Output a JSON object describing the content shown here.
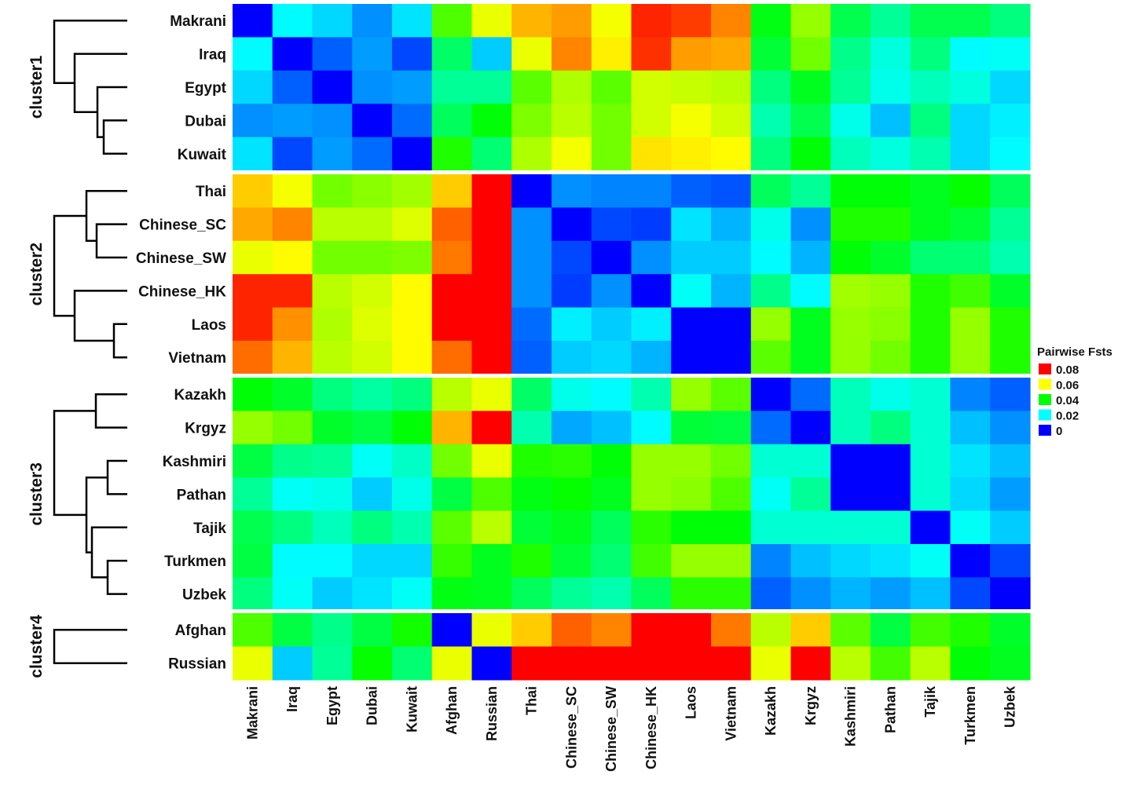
{
  "chart_data": {
    "type": "heatmap",
    "rows": [
      "Makrani",
      "Iraq",
      "Egypt",
      "Dubai",
      "Kuwait",
      "Thai",
      "Chinese_SC",
      "Chinese_SW",
      "Chinese_HK",
      "Laos",
      "Vietnam",
      "Kazakh",
      "Krgyz",
      "Kashmiri",
      "Pathan",
      "Tajik",
      "Turkmen",
      "Uzbek",
      "Afghan",
      "Russian"
    ],
    "columns": [
      "Makrani",
      "Iraq",
      "Egypt",
      "Dubai",
      "Kuwait",
      "Afghan",
      "Russian",
      "Thai",
      "Chinese_SC",
      "Chinese_SW",
      "Chinese_HK",
      "Laos",
      "Vietnam",
      "Kazakh",
      "Krgyz",
      "Kashmiri",
      "Pathan",
      "Tajik",
      "Turkmen",
      "Uzbek"
    ],
    "clusters": [
      {
        "label": "cluster1",
        "rows": [
          "Makrani",
          "Iraq",
          "Egypt",
          "Dubai",
          "Kuwait"
        ]
      },
      {
        "label": "cluster2",
        "rows": [
          "Thai",
          "Chinese_SC",
          "Chinese_SW",
          "Chinese_HK",
          "Laos",
          "Vietnam"
        ]
      },
      {
        "label": "cluster3",
        "rows": [
          "Kazakh",
          "Krgyz",
          "Kashmiri",
          "Pathan",
          "Tajik",
          "Turkmen",
          "Uzbek"
        ]
      },
      {
        "label": "cluster4",
        "rows": [
          "Afghan",
          "Russian"
        ]
      }
    ],
    "values": [
      [
        0,
        0.021,
        0.018,
        0.012,
        0.019,
        0.049,
        0.062,
        0.07,
        0.072,
        0.063,
        0.082,
        0.08,
        0.074,
        0.041,
        0.055,
        0.036,
        0.03,
        0.036,
        0.036,
        0.032
      ],
      [
        0.021,
        0,
        0.008,
        0.013,
        0.006,
        0.034,
        0.017,
        0.062,
        0.074,
        0.065,
        0.081,
        0.072,
        0.071,
        0.038,
        0.052,
        0.031,
        0.024,
        0.032,
        0.021,
        0.022
      ],
      [
        0.018,
        0.008,
        0,
        0.012,
        0.013,
        0.03,
        0.03,
        0.05,
        0.057,
        0.05,
        0.06,
        0.059,
        0.058,
        0.032,
        0.04,
        0.03,
        0.023,
        0.027,
        0.024,
        0.018
      ],
      [
        0.012,
        0.013,
        0.012,
        0,
        0.009,
        0.035,
        0.042,
        0.053,
        0.058,
        0.052,
        0.06,
        0.063,
        0.06,
        0.028,
        0.036,
        0.023,
        0.016,
        0.032,
        0.018,
        0.02
      ],
      [
        0.019,
        0.006,
        0.013,
        0.009,
        0,
        0.045,
        0.033,
        0.057,
        0.063,
        0.052,
        0.066,
        0.065,
        0.064,
        0.032,
        0.042,
        0.027,
        0.024,
        0.028,
        0.018,
        0.021
      ],
      [
        0.068,
        0.063,
        0.052,
        0.054,
        0.056,
        0.068,
        0.09,
        0,
        0.012,
        0.011,
        0.011,
        0.008,
        0.007,
        0.035,
        0.03,
        0.042,
        0.042,
        0.04,
        0.043,
        0.035
      ],
      [
        0.071,
        0.074,
        0.058,
        0.058,
        0.061,
        0.077,
        0.09,
        0.012,
        0,
        0.006,
        0.005,
        0.019,
        0.015,
        0.023,
        0.012,
        0.045,
        0.045,
        0.04,
        0.038,
        0.03
      ],
      [
        0.062,
        0.064,
        0.052,
        0.052,
        0.053,
        0.075,
        0.09,
        0.012,
        0.006,
        0,
        0.012,
        0.017,
        0.017,
        0.021,
        0.015,
        0.042,
        0.039,
        0.033,
        0.033,
        0.028
      ],
      [
        0.082,
        0.082,
        0.058,
        0.06,
        0.064,
        0.088,
        0.09,
        0.012,
        0.005,
        0.012,
        0,
        0.022,
        0.015,
        0.031,
        0.021,
        0.056,
        0.055,
        0.045,
        0.048,
        0.039
      ],
      [
        0.082,
        0.073,
        0.057,
        0.061,
        0.064,
        0.088,
        0.09,
        0.009,
        0.02,
        0.017,
        0.02,
        0,
        0,
        0.055,
        0.04,
        0.055,
        0.054,
        0.045,
        0.055,
        0.045
      ],
      [
        0.076,
        0.07,
        0.058,
        0.06,
        0.064,
        0.076,
        0.09,
        0.008,
        0.017,
        0.018,
        0.015,
        0,
        0,
        0.05,
        0.04,
        0.055,
        0.052,
        0.045,
        0.055,
        0.045
      ],
      [
        0.042,
        0.039,
        0.032,
        0.029,
        0.032,
        0.058,
        0.062,
        0.034,
        0.023,
        0.021,
        0.028,
        0.055,
        0.05,
        0,
        0.009,
        0.027,
        0.023,
        0.025,
        0.011,
        0.008
      ],
      [
        0.055,
        0.052,
        0.039,
        0.037,
        0.042,
        0.07,
        0.09,
        0.028,
        0.014,
        0.016,
        0.021,
        0.038,
        0.037,
        0.009,
        0,
        0.027,
        0.032,
        0.025,
        0.016,
        0.012
      ],
      [
        0.037,
        0.031,
        0.03,
        0.022,
        0.026,
        0.052,
        0.062,
        0.045,
        0.046,
        0.042,
        0.055,
        0.055,
        0.052,
        0.025,
        0.025,
        0,
        0,
        0.025,
        0.019,
        0.016
      ],
      [
        0.03,
        0.022,
        0.023,
        0.017,
        0.023,
        0.037,
        0.049,
        0.041,
        0.043,
        0.04,
        0.055,
        0.054,
        0.049,
        0.022,
        0.03,
        0,
        0,
        0.025,
        0.018,
        0.013
      ],
      [
        0.036,
        0.032,
        0.027,
        0.032,
        0.028,
        0.05,
        0.058,
        0.038,
        0.04,
        0.035,
        0.046,
        0.042,
        0.042,
        0.025,
        0.025,
        0.025,
        0.025,
        0,
        0.022,
        0.017
      ],
      [
        0.037,
        0.021,
        0.021,
        0.018,
        0.018,
        0.047,
        0.04,
        0.045,
        0.038,
        0.033,
        0.048,
        0.055,
        0.055,
        0.011,
        0.016,
        0.018,
        0.019,
        0.022,
        0,
        0.006
      ],
      [
        0.032,
        0.022,
        0.017,
        0.019,
        0.022,
        0.041,
        0.04,
        0.035,
        0.03,
        0.028,
        0.035,
        0.046,
        0.046,
        0.008,
        0.012,
        0.015,
        0.013,
        0.016,
        0.006,
        0
      ],
      [
        0.049,
        0.037,
        0.031,
        0.037,
        0.044,
        0,
        0.062,
        0.068,
        0.077,
        0.074,
        0.09,
        0.09,
        0.075,
        0.058,
        0.068,
        0.05,
        0.037,
        0.048,
        0.045,
        0.039
      ],
      [
        0.062,
        0.017,
        0.03,
        0.043,
        0.033,
        0.062,
        0,
        0.09,
        0.09,
        0.09,
        0.09,
        0.09,
        0.09,
        0.062,
        0.09,
        0.058,
        0.048,
        0.058,
        0.042,
        0.04
      ]
    ],
    "legend": {
      "title": "Pairwise Fsts",
      "position": "right",
      "entries": [
        {
          "label": "0.08",
          "value": 0.08,
          "color": "#ff0000"
        },
        {
          "label": "0.06",
          "value": 0.06,
          "color": "#ffff00"
        },
        {
          "label": "0.04",
          "value": 0.04,
          "color": "#00ff00"
        },
        {
          "label": "0.02",
          "value": 0.02,
          "color": "#00ffff"
        },
        {
          "label": "0",
          "value": 0,
          "color": "#0000ff"
        }
      ]
    },
    "color_scale": {
      "min": 0,
      "max": 0.085
    }
  }
}
